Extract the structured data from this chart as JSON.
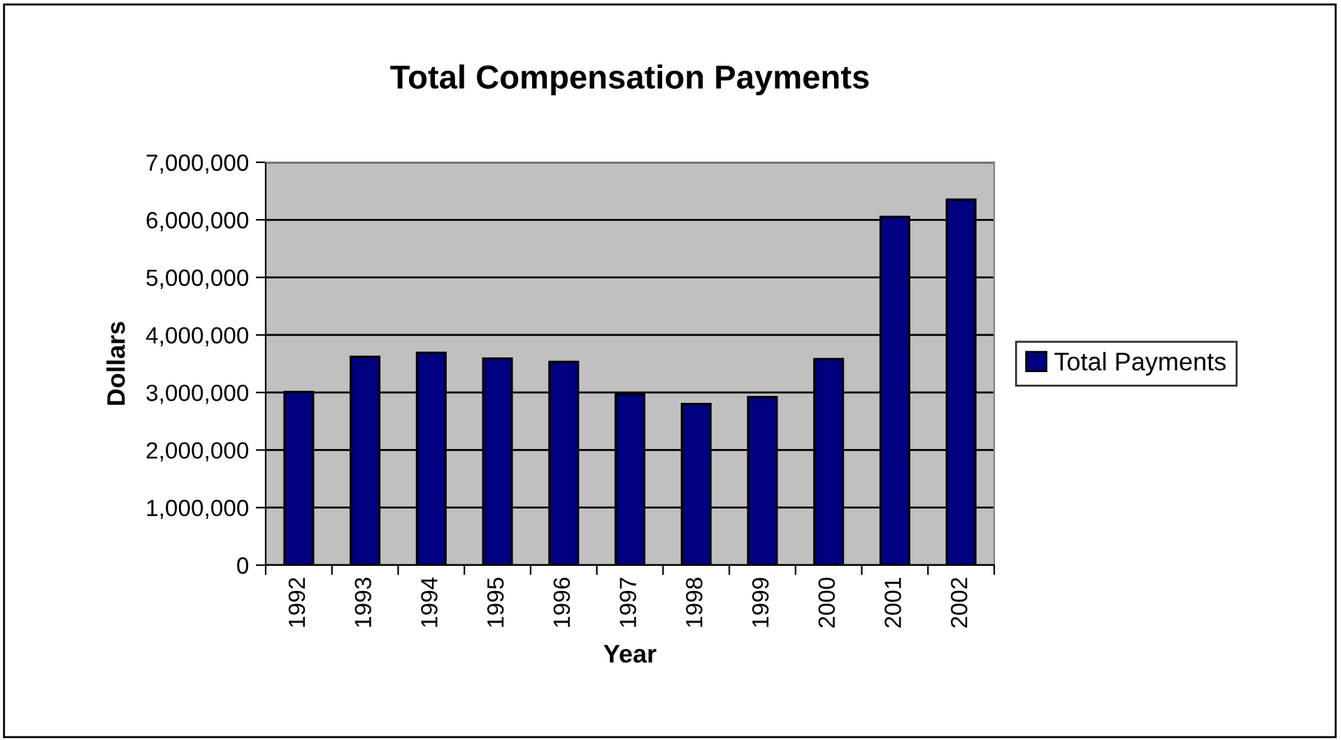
{
  "chart_data": {
    "type": "bar",
    "title": "Total Compensation Payments",
    "xlabel": "Year",
    "ylabel": "Dollars",
    "categories": [
      "1992",
      "1993",
      "1994",
      "1995",
      "1996",
      "1997",
      "1998",
      "1999",
      "2000",
      "2001",
      "2002"
    ],
    "series": [
      {
        "name": "Total Payments",
        "color": "#000080",
        "values": [
          3010000,
          3620000,
          3690000,
          3590000,
          3530000,
          2970000,
          2800000,
          2920000,
          3580000,
          6050000,
          6350000
        ]
      }
    ],
    "ylim": [
      0,
      7000000
    ],
    "yticks": [
      {
        "value": 0,
        "label": "0"
      },
      {
        "value": 1000000,
        "label": "1,000,000"
      },
      {
        "value": 2000000,
        "label": "2,000,000"
      },
      {
        "value": 3000000,
        "label": "3,000,000"
      },
      {
        "value": 4000000,
        "label": "4,000,000"
      },
      {
        "value": 5000000,
        "label": "5,000,000"
      },
      {
        "value": 6000000,
        "label": "6,000,000"
      },
      {
        "value": 7000000,
        "label": "7,000,000"
      }
    ],
    "grid": "y",
    "legend": "right"
  }
}
